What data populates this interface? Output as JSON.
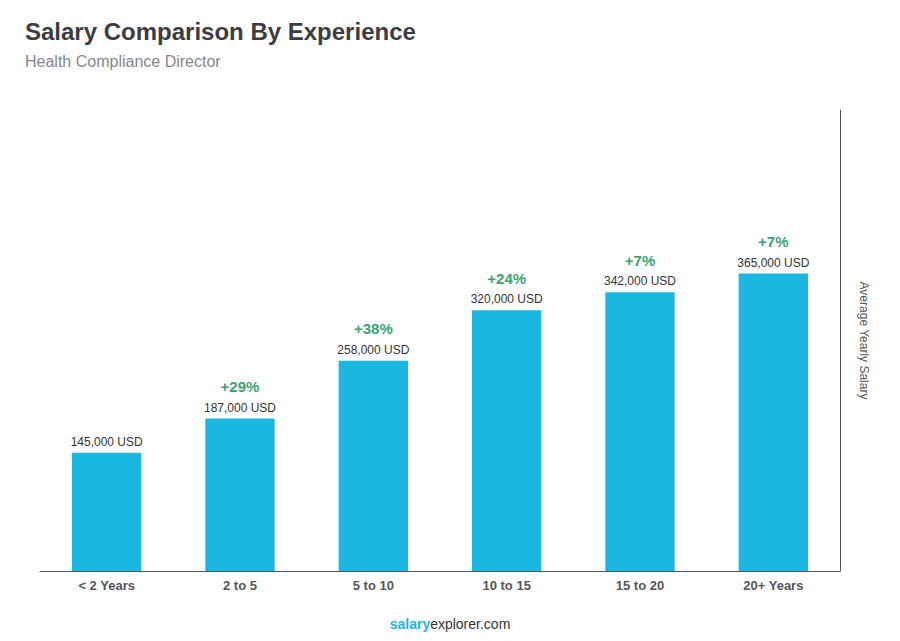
{
  "chart_data": {
    "type": "bar",
    "title": "Salary Comparison By Experience",
    "subtitle": "Health Compliance Director",
    "categories": [
      "< 2 Years",
      "2 to 5",
      "5 to 10",
      "10 to 15",
      "15 to 20",
      "20+ Years"
    ],
    "values": [
      145000,
      187000,
      258000,
      320000,
      342000,
      365000
    ],
    "value_labels": [
      "145,000 USD",
      "187,000 USD",
      "258,000 USD",
      "320,000 USD",
      "342,000 USD",
      "365,000 USD"
    ],
    "data_labels": true,
    "color": "#1ab8e0",
    "ylabel": "Average Yearly Salary",
    "ylim": [
      0,
      565750
    ],
    "yticks": [],
    "tick_labels": "x",
    "grid": false,
    "annotations": [
      {
        "category": "2 to 5",
        "text": "+29%"
      },
      {
        "category": "5 to 10",
        "text": "+38%"
      },
      {
        "category": "10 to 15",
        "text": "+24%"
      },
      {
        "category": "15 to 20",
        "text": "+7%"
      },
      {
        "category": "20+ Years",
        "text": "+7%"
      },
      {
        "text": "salary"
      },
      {
        "text": "explorer.com"
      }
    ]
  }
}
